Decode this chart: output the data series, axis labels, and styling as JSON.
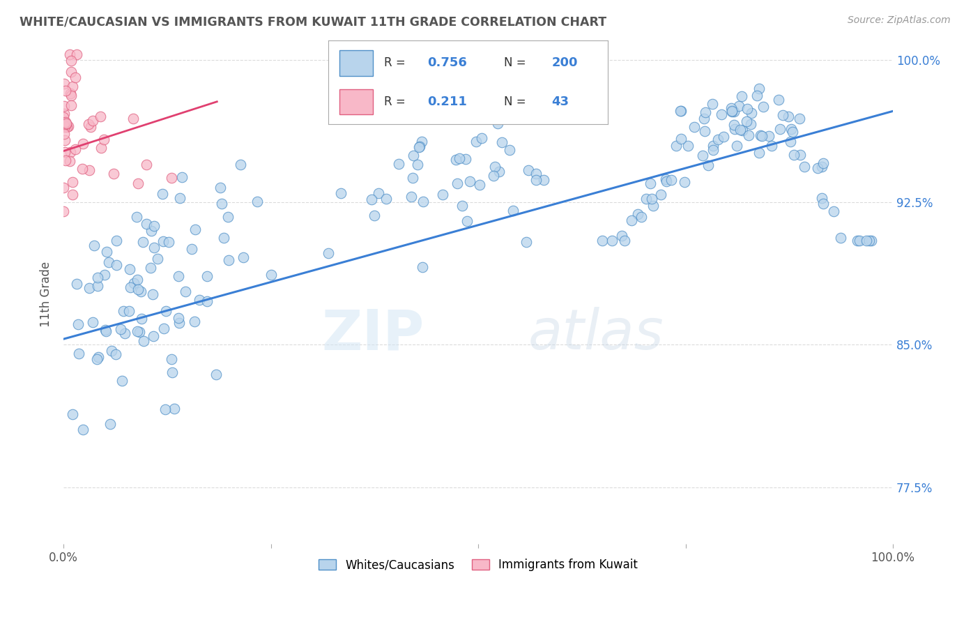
{
  "title": "WHITE/CAUCASIAN VS IMMIGRANTS FROM KUWAIT 11TH GRADE CORRELATION CHART",
  "source_text": "Source: ZipAtlas.com",
  "ylabel": "11th Grade",
  "xlim": [
    0.0,
    1.0
  ],
  "ylim": [
    0.745,
    1.008
  ],
  "ytick_labels_right": [
    "100.0%",
    "92.5%",
    "85.0%",
    "77.5%"
  ],
  "ytick_positions_right": [
    1.0,
    0.925,
    0.85,
    0.775
  ],
  "blue_fill": "#b8d4ec",
  "blue_edge": "#5090c8",
  "pink_fill": "#f8b8c8",
  "pink_edge": "#e06080",
  "blue_line_color": "#3a7fd5",
  "pink_line_color": "#e04070",
  "legend_blue_label": "Whites/Caucasians",
  "legend_pink_label": "Immigrants from Kuwait",
  "R_blue": "0.756",
  "N_blue": "200",
  "R_pink": "0.211",
  "N_pink": "43",
  "text_color": "#3a7fd5",
  "title_color": "#555555",
  "watermark_zip": "ZIP",
  "watermark_atlas": "atlas",
  "grid_color": "#cccccc",
  "background_color": "#ffffff"
}
